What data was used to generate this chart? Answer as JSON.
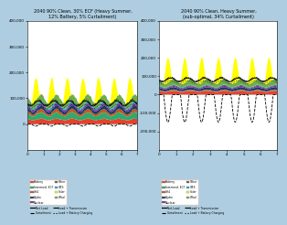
{
  "title_left": "2040 90% Clean, 30% ECF (Heavy Summer,\n12% Battery, 5% Curtailment)",
  "title_right": "2040 90% Clean, Heavy Summer,\n(sub-optimal, 34% Curtailment)",
  "bg_color": "#aecde0",
  "chart_bg": "#ffffff",
  "n_days": 7,
  "hours_per_day": 24,
  "ylim_left": [
    -100000,
    400000
  ],
  "ylim_right": [
    -300000,
    400000
  ],
  "yticks_left": [
    0,
    100000,
    200000,
    300000,
    400000
  ],
  "yticks_right": [
    -200000,
    -100000,
    0,
    100000,
    200000,
    300000,
    400000
  ],
  "colors": {
    "Battery": "#e8402a",
    "ECF": "#2daa6e",
    "CH4": "#bf5a1a",
    "Hydro": "#1f3864",
    "Nuclear": "#7030a0",
    "Other": "#595959",
    "ITES": "#00b0f0",
    "Wind": "#70ad47",
    "Solar": "#ffff00"
  }
}
